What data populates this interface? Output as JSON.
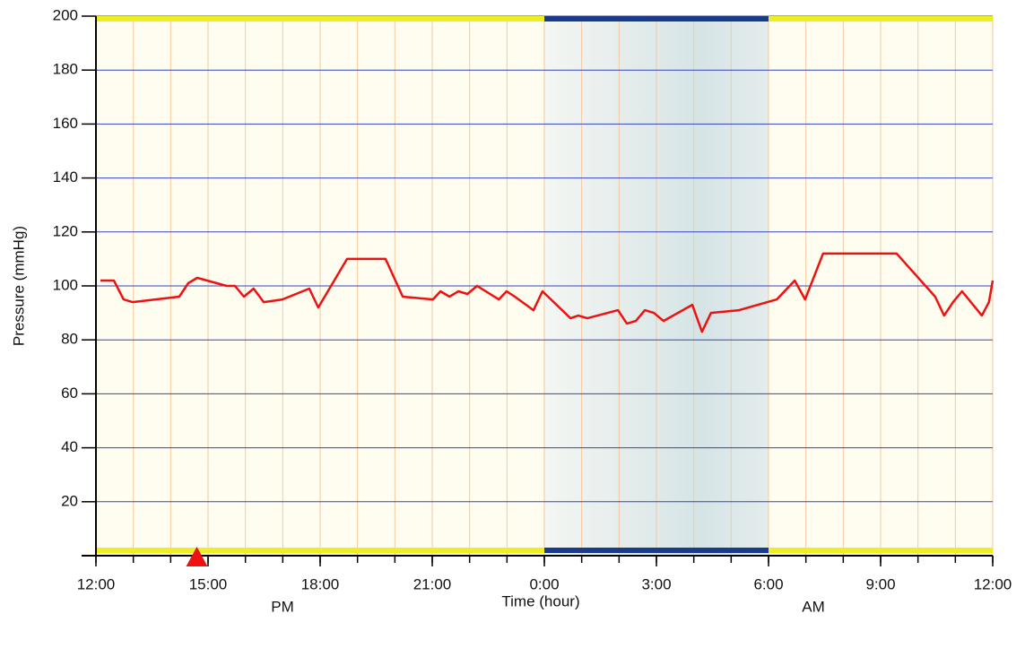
{
  "chart_data": {
    "type": "line",
    "ylabel": "Pressure (mmHg)",
    "xlabel": "Time (hour)",
    "annotations": [
      "PM",
      "AM"
    ],
    "xlim": [
      0,
      24
    ],
    "ylim": [
      0,
      200
    ],
    "yticks": [
      20,
      40,
      60,
      80,
      100,
      120,
      140,
      160,
      180,
      200
    ],
    "xticks": [
      {
        "value": 0,
        "label": "12:00"
      },
      {
        "value": 3,
        "label": "15:00"
      },
      {
        "value": 6,
        "label": "18:00"
      },
      {
        "value": 9,
        "label": "21:00"
      },
      {
        "value": 12,
        "label": "0:00"
      },
      {
        "value": 15,
        "label": "3:00"
      },
      {
        "value": 18,
        "label": "6:00"
      },
      {
        "value": 21,
        "label": "9:00"
      },
      {
        "value": 24,
        "label": "12:00"
      }
    ],
    "xminorticks": [
      0,
      1,
      2,
      3,
      4,
      5,
      6,
      7,
      8,
      9,
      10,
      11,
      12,
      13,
      14,
      15,
      16,
      17,
      18,
      19,
      20,
      21,
      22,
      23,
      24
    ],
    "night": [
      12,
      18
    ],
    "marker_x": 2.7,
    "grid": true,
    "series": [
      {
        "color": "#ee1111",
        "x": [
          0.12,
          0.48,
          0.74,
          0.98,
          2.23,
          2.47,
          2.71,
          3.5,
          3.72,
          3.96,
          4.22,
          4.49,
          4.99,
          5.71,
          5.95,
          6.72,
          7.75,
          8.21,
          9.02,
          9.22,
          9.46,
          9.7,
          9.94,
          10.2,
          10.78,
          10.99,
          11.21,
          11.71,
          11.95,
          12.7,
          12.91,
          13.15,
          13.97,
          14.21,
          14.45,
          14.69,
          14.93,
          15.19,
          15.96,
          16.22,
          16.46,
          17.21,
          18.22,
          18.7,
          18.98,
          19.46,
          19.87,
          21.43,
          22.46,
          22.7,
          22.94,
          23.18,
          23.71,
          23.9,
          24
        ],
        "values": [
          102,
          102,
          95,
          94,
          96,
          101,
          103,
          100,
          100,
          96,
          99,
          94,
          95,
          99,
          92,
          110,
          110,
          96,
          95,
          98,
          96,
          98,
          97,
          100,
          95,
          98,
          96,
          91,
          98,
          88,
          89,
          88,
          91,
          86,
          87,
          91,
          90,
          87,
          93,
          83,
          90,
          91,
          95,
          102,
          95,
          112,
          112,
          112,
          96,
          89,
          94,
          98,
          89,
          94,
          102
        ]
      }
    ]
  }
}
